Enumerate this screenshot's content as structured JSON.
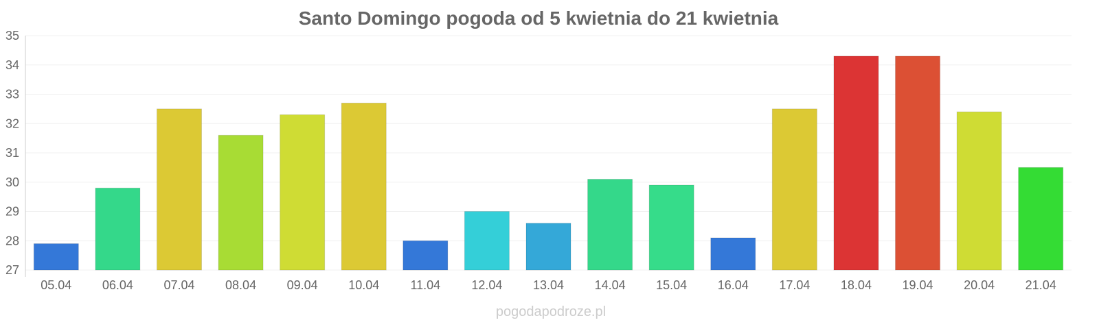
{
  "chart_data": {
    "type": "bar",
    "title": "Santo Domingo pogoda od 5 kwietnia do 21 kwietnia",
    "xlabel": "",
    "ylabel": "",
    "ylim": [
      27,
      35
    ],
    "yticks": [
      "27",
      "28",
      "29",
      "30",
      "31",
      "32",
      "33",
      "34",
      "35"
    ],
    "grid": true,
    "categories": [
      "05.04",
      "06.04",
      "07.04",
      "08.04",
      "09.04",
      "10.04",
      "11.04",
      "12.04",
      "13.04",
      "14.04",
      "15.04",
      "16.04",
      "17.04",
      "18.04",
      "19.04",
      "20.04",
      "21.04"
    ],
    "values": [
      27.9,
      29.8,
      32.5,
      31.6,
      32.3,
      32.7,
      28.0,
      29.0,
      28.6,
      30.1,
      29.9,
      28.1,
      32.5,
      34.3,
      34.3,
      32.4,
      30.5
    ],
    "colors": [
      "#3478d8",
      "#34d88a",
      "#dcc934",
      "#a8dc34",
      "#cfdc34",
      "#dcc934",
      "#3478d8",
      "#34cfd8",
      "#34a8d8",
      "#34d88a",
      "#36dc8a",
      "#3478d8",
      "#dcc934",
      "#dc3434",
      "#dc5034",
      "#cfdc34",
      "#34dc34"
    ]
  },
  "credit": "pogodapodroze.pl"
}
